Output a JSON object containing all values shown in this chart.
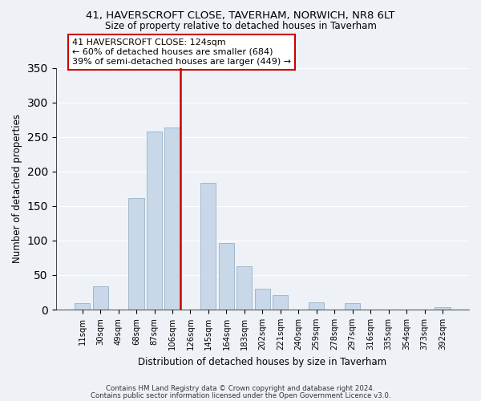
{
  "title": "41, HAVERSCROFT CLOSE, TAVERHAM, NORWICH, NR8 6LT",
  "subtitle": "Size of property relative to detached houses in Taverham",
  "xlabel": "Distribution of detached houses by size in Taverham",
  "ylabel": "Number of detached properties",
  "bar_labels": [
    "11sqm",
    "30sqm",
    "49sqm",
    "68sqm",
    "87sqm",
    "106sqm",
    "126sqm",
    "145sqm",
    "164sqm",
    "183sqm",
    "202sqm",
    "221sqm",
    "240sqm",
    "259sqm",
    "278sqm",
    "297sqm",
    "316sqm",
    "335sqm",
    "354sqm",
    "373sqm",
    "392sqm"
  ],
  "bar_values": [
    9,
    34,
    0,
    162,
    258,
    263,
    0,
    184,
    97,
    63,
    30,
    21,
    0,
    10,
    0,
    9,
    0,
    0,
    0,
    0,
    3
  ],
  "bar_color": "#c8d8e8",
  "bar_edge_color": "#a0b8cc",
  "vline_color": "#cc0000",
  "annotation_text": "41 HAVERSCROFT CLOSE: 124sqm\n← 60% of detached houses are smaller (684)\n39% of semi-detached houses are larger (449) →",
  "annotation_box_color": "#ffffff",
  "annotation_box_edge": "#cc0000",
  "ylim": [
    0,
    350
  ],
  "yticks": [
    0,
    50,
    100,
    150,
    200,
    250,
    300,
    350
  ],
  "footer_line1": "Contains HM Land Registry data © Crown copyright and database right 2024.",
  "footer_line2": "Contains public sector information licensed under the Open Government Licence v3.0.",
  "bg_color": "#eef2f7"
}
